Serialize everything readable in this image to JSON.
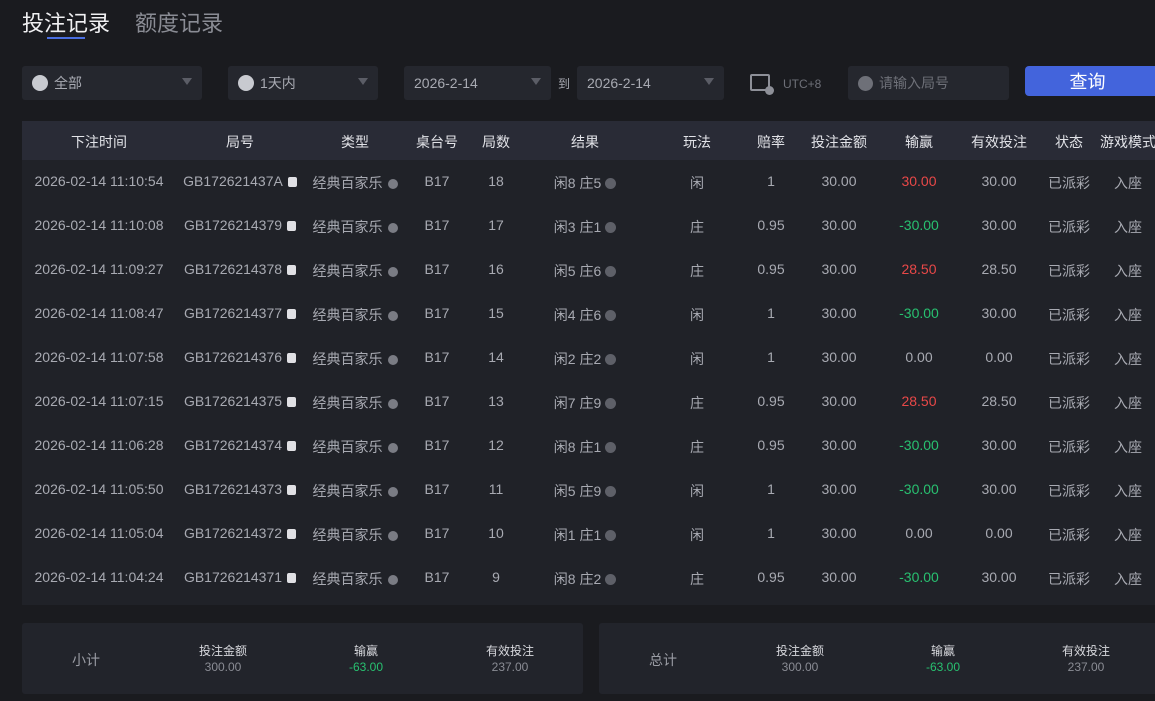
{
  "tabs": [
    {
      "label": "投注记录",
      "active": true
    },
    {
      "label": "额度记录",
      "active": false
    }
  ],
  "filters": {
    "game": {
      "value": "全部",
      "icon": "spade-icon"
    },
    "period": {
      "value": "1天内",
      "icon": "clock-icon"
    },
    "from": "2026-2-14",
    "to_label": "到",
    "to": "2026-2-14",
    "timezone": "UTC+8",
    "search_placeholder": "请输入局号",
    "search_value": "",
    "query_button": "查询"
  },
  "colors": {
    "accent": "#4364dc",
    "win": "#e84848",
    "lose": "#28c070"
  },
  "table": {
    "headers": [
      "下注时间",
      "局号",
      "类型",
      "桌台号",
      "局数",
      "结果",
      "玩法",
      "赔率",
      "投注金额",
      "输赢",
      "有效投注",
      "状态",
      "游戏模式"
    ],
    "rows": [
      [
        "2026-02-14 11:10:54",
        "GB172621437A",
        "经典百家乐",
        "B17",
        "18",
        "闲8 庄5",
        "闲",
        "1",
        "30.00",
        "30.00",
        "30.00",
        "已派彩",
        "入座"
      ],
      [
        "2026-02-14 11:10:08",
        "GB1726214379",
        "经典百家乐",
        "B17",
        "17",
        "闲3 庄1",
        "庄",
        "0.95",
        "30.00",
        "-30.00",
        "30.00",
        "已派彩",
        "入座"
      ],
      [
        "2026-02-14 11:09:27",
        "GB1726214378",
        "经典百家乐",
        "B17",
        "16",
        "闲5 庄6",
        "庄",
        "0.95",
        "30.00",
        "28.50",
        "28.50",
        "已派彩",
        "入座"
      ],
      [
        "2026-02-14 11:08:47",
        "GB1726214377",
        "经典百家乐",
        "B17",
        "15",
        "闲4 庄6",
        "闲",
        "1",
        "30.00",
        "-30.00",
        "30.00",
        "已派彩",
        "入座"
      ],
      [
        "2026-02-14 11:07:58",
        "GB1726214376",
        "经典百家乐",
        "B17",
        "14",
        "闲2 庄2",
        "闲",
        "1",
        "30.00",
        "0.00",
        "0.00",
        "已派彩",
        "入座"
      ],
      [
        "2026-02-14 11:07:15",
        "GB1726214375",
        "经典百家乐",
        "B17",
        "13",
        "闲7 庄9",
        "庄",
        "0.95",
        "30.00",
        "28.50",
        "28.50",
        "已派彩",
        "入座"
      ],
      [
        "2026-02-14 11:06:28",
        "GB1726214374",
        "经典百家乐",
        "B17",
        "12",
        "闲8 庄1",
        "庄",
        "0.95",
        "30.00",
        "-30.00",
        "30.00",
        "已派彩",
        "入座"
      ],
      [
        "2026-02-14 11:05:50",
        "GB1726214373",
        "经典百家乐",
        "B17",
        "11",
        "闲5 庄9",
        "闲",
        "1",
        "30.00",
        "-30.00",
        "30.00",
        "已派彩",
        "入座"
      ],
      [
        "2026-02-14 11:05:04",
        "GB1726214372",
        "经典百家乐",
        "B17",
        "10",
        "闲1 庄1",
        "闲",
        "1",
        "30.00",
        "0.00",
        "0.00",
        "已派彩",
        "入座"
      ],
      [
        "2026-02-14 11:04:24",
        "GB1726214371",
        "经典百家乐",
        "B17",
        "9",
        "闲8 庄2",
        "庄",
        "0.95",
        "30.00",
        "-30.00",
        "30.00",
        "已派彩",
        "入座"
      ]
    ]
  },
  "subtotal": {
    "label": "小计",
    "bet_label": "投注金额",
    "bet": "300.00",
    "winloss_label": "输赢",
    "winloss": "-63.00",
    "valid_label": "有效投注",
    "valid": "237.00"
  },
  "total": {
    "label": "总计",
    "bet_label": "投注金额",
    "bet": "300.00",
    "winloss_label": "输赢",
    "winloss": "-63.00",
    "valid_label": "有效投注",
    "valid": "237.00"
  }
}
